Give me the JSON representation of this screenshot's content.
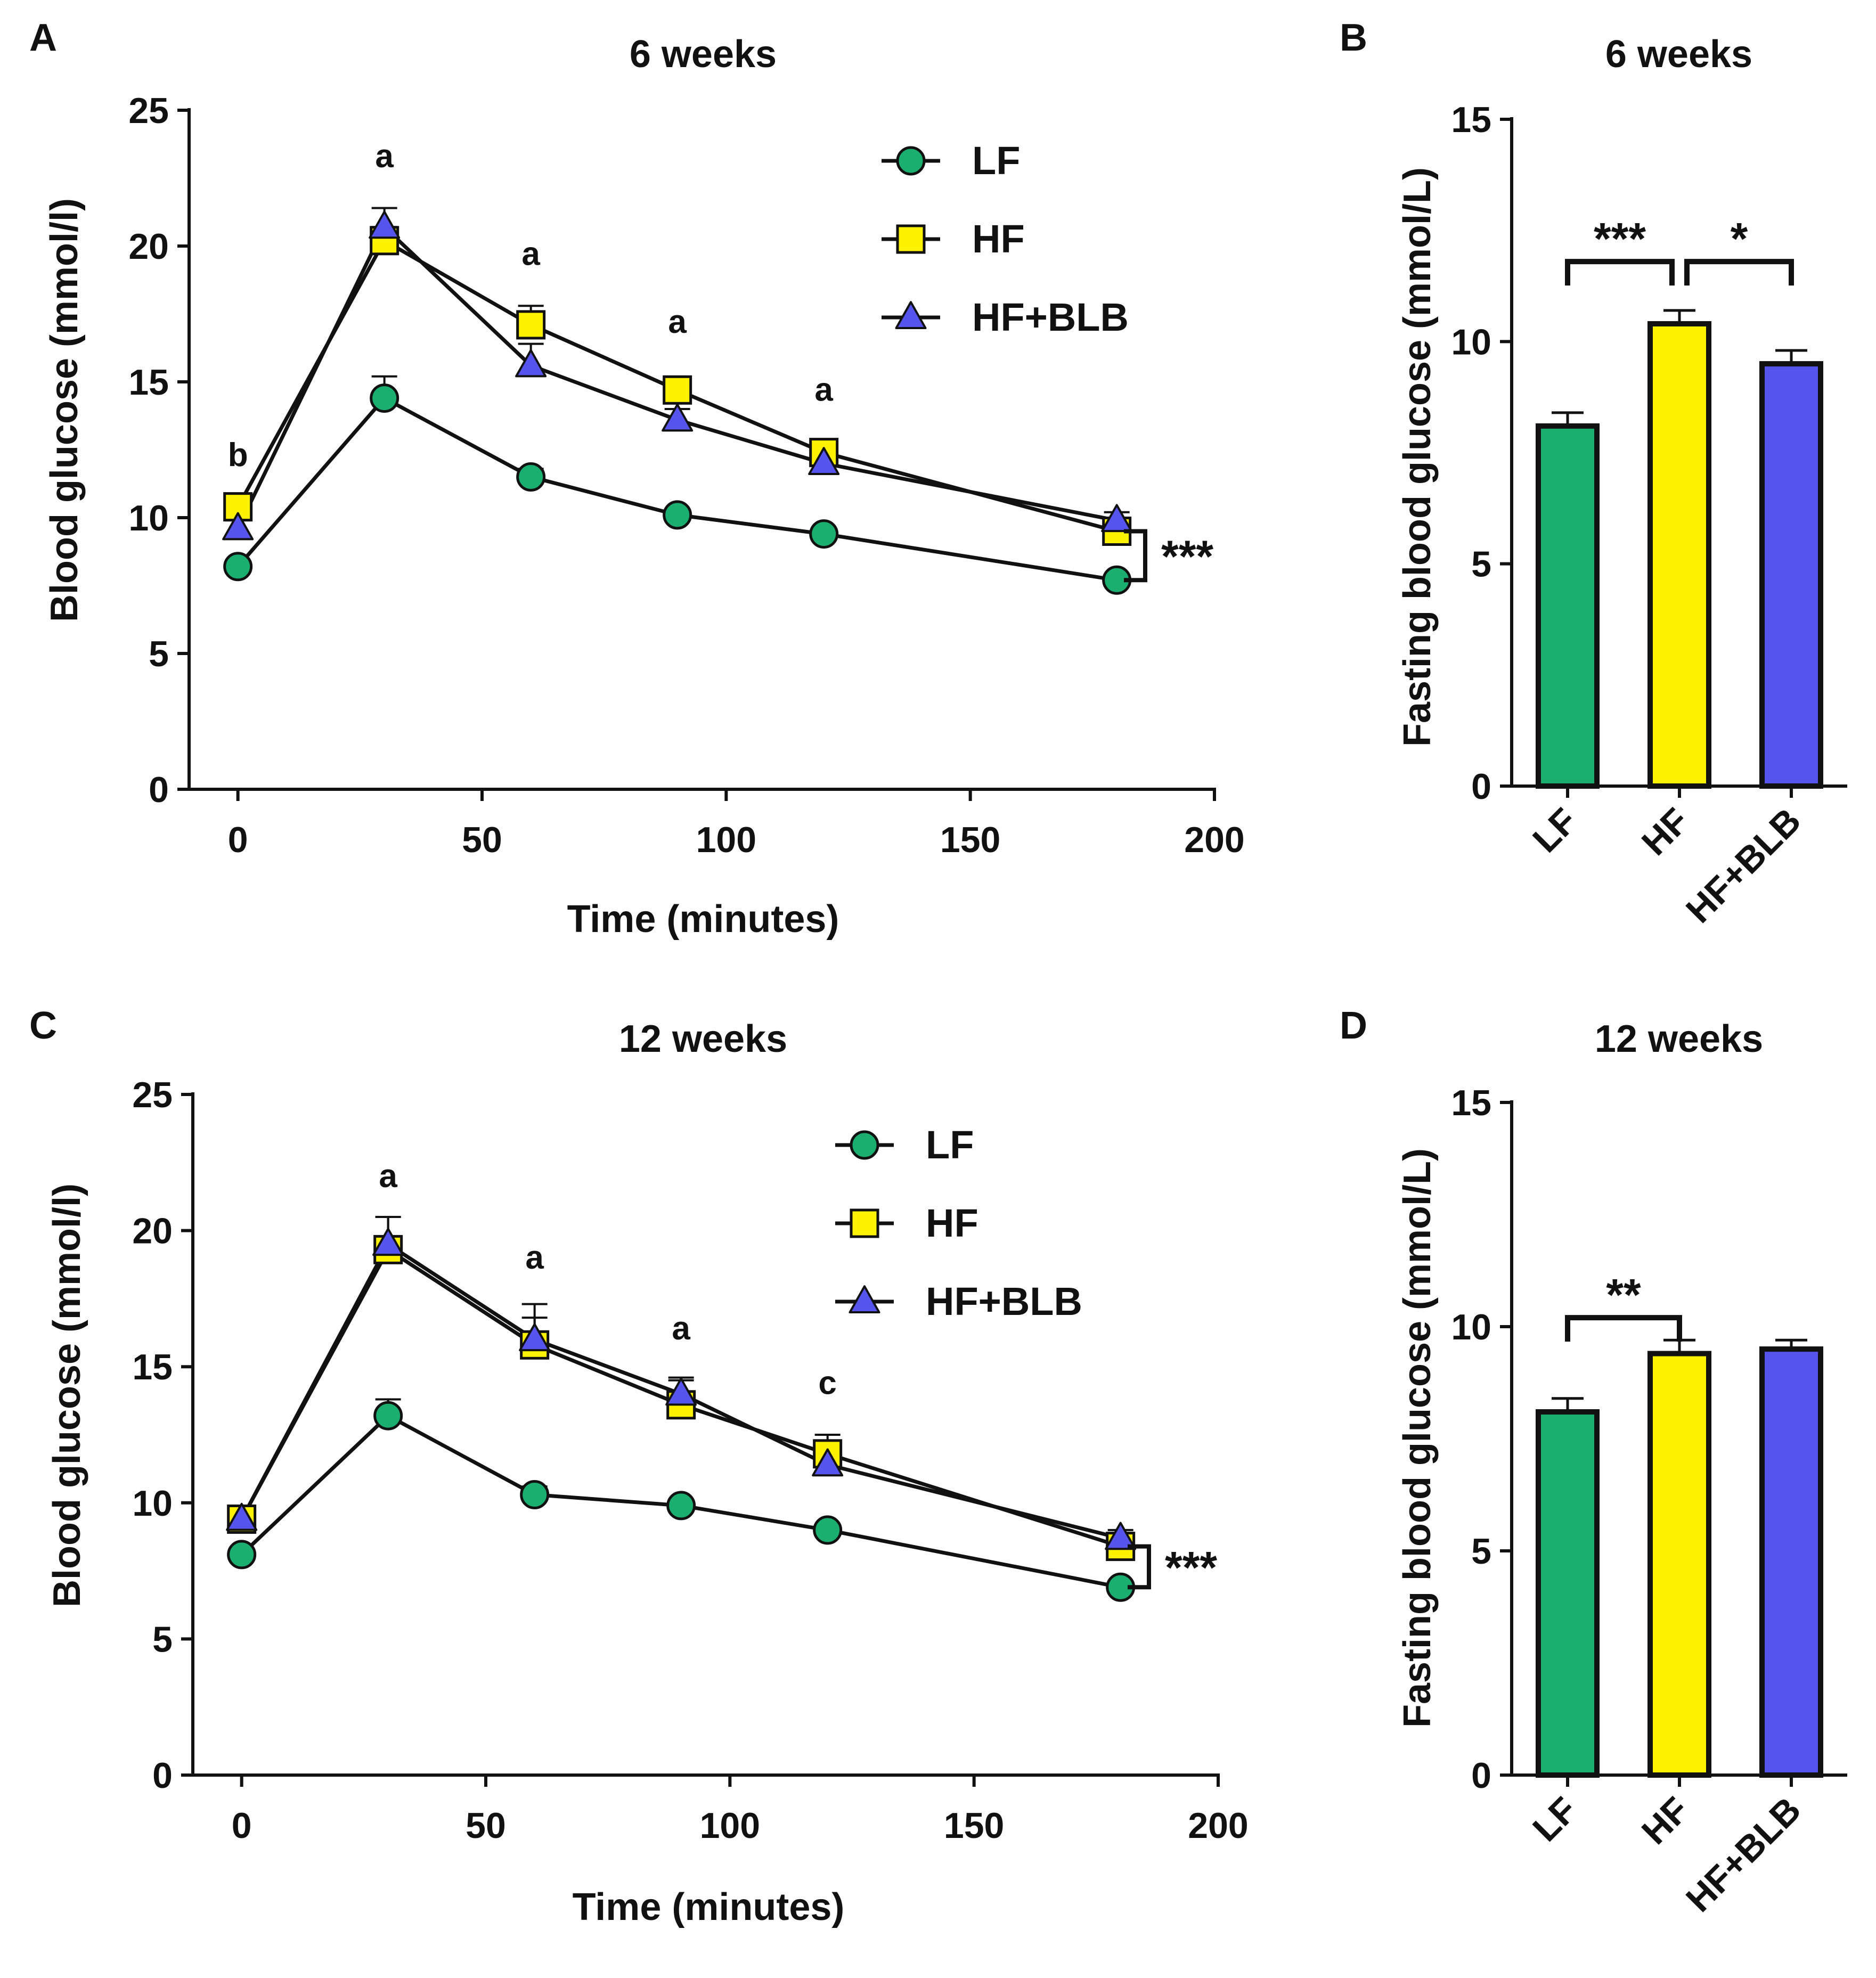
{
  "colors": {
    "LF": "#1aae6f",
    "HF": "#fff200",
    "HF+BLB": "#5555ee",
    "ink": "#111111"
  },
  "chart_data": [
    {
      "id": "A",
      "type": "line",
      "panel_label": "A",
      "title": "6 weeks",
      "xlabel": "Time (minutes)",
      "ylabel": "Blood glucose (mmol/l)",
      "xlim": [
        -10,
        200
      ],
      "ylim": [
        0,
        25
      ],
      "xticks": [
        0,
        50,
        100,
        150,
        200
      ],
      "yticks": [
        0,
        5,
        10,
        15,
        20,
        25
      ],
      "x": [
        0,
        30,
        60,
        90,
        120,
        180
      ],
      "legend": [
        "LF",
        "HF",
        "HF+BLB"
      ],
      "series": [
        {
          "name": "LF",
          "marker": "circle",
          "values": [
            8.2,
            14.4,
            11.5,
            10.1,
            9.4,
            7.7
          ],
          "err": [
            0.2,
            0.8,
            0.3,
            0.2,
            0.2,
            0.2
          ]
        },
        {
          "name": "HF",
          "marker": "square",
          "values": [
            10.4,
            20.2,
            17.1,
            14.7,
            12.4,
            9.5
          ],
          "err": [
            0.3,
            0.5,
            0.7,
            0.4,
            0.3,
            0.3
          ]
        },
        {
          "name": "HF+BLB",
          "marker": "triangle",
          "values": [
            9.6,
            20.7,
            15.6,
            13.6,
            12.0,
            9.9
          ],
          "err": [
            0.3,
            0.7,
            0.8,
            0.4,
            0.3,
            0.3
          ]
        }
      ],
      "annotations": [
        {
          "x": 0,
          "y": 11.9,
          "text": "b"
        },
        {
          "x": 30,
          "y": 22.9,
          "text": "a"
        },
        {
          "x": 60,
          "y": 19.3,
          "text": "a"
        },
        {
          "x": 90,
          "y": 16.8,
          "text": "a"
        },
        {
          "x": 120,
          "y": 14.3,
          "text": "a"
        }
      ],
      "significance": {
        "text": "***",
        "y_top": 9.5,
        "y_bottom": 7.7
      }
    },
    {
      "id": "B",
      "type": "bar",
      "panel_label": "B",
      "title": "6 weeks",
      "xlabel": "",
      "ylabel": "Fasting blood glucose (mmol/L)",
      "ylim": [
        0,
        15
      ],
      "yticks": [
        0,
        5,
        10,
        15
      ],
      "categories": [
        "LF",
        "HF",
        "HF+BLB"
      ],
      "values": [
        8.1,
        10.4,
        9.5
      ],
      "err": [
        0.3,
        0.3,
        0.3
      ],
      "brackets": [
        {
          "from": 0,
          "to": 1,
          "y": 11.8,
          "text": "***"
        },
        {
          "from": 1,
          "to": 2,
          "y": 11.8,
          "text": "*"
        }
      ]
    },
    {
      "id": "C",
      "type": "line",
      "panel_label": "C",
      "title": "12 weeks",
      "xlabel": "Time (minutes)",
      "ylabel": "Blood glucose (mmol/l)",
      "xlim": [
        -10,
        200
      ],
      "ylim": [
        0,
        25
      ],
      "xticks": [
        0,
        50,
        100,
        150,
        200
      ],
      "yticks": [
        0,
        5,
        10,
        15,
        20,
        25
      ],
      "x": [
        0,
        30,
        60,
        90,
        120,
        180
      ],
      "legend": [
        "LF",
        "HF",
        "HF+BLB"
      ],
      "series": [
        {
          "name": "LF",
          "marker": "circle",
          "values": [
            8.1,
            13.2,
            10.3,
            9.9,
            9.0,
            6.9
          ],
          "err": [
            0.2,
            0.6,
            0.3,
            0.2,
            0.2,
            0.2
          ]
        },
        {
          "name": "HF",
          "marker": "square",
          "values": [
            9.4,
            19.3,
            15.8,
            13.6,
            11.8,
            8.4
          ],
          "err": [
            0.3,
            1.2,
            1.5,
            1.0,
            0.7,
            0.3
          ]
        },
        {
          "name": "HF+BLB",
          "marker": "triangle",
          "values": [
            9.4,
            19.5,
            16.0,
            14.0,
            11.4,
            8.7
          ],
          "err": [
            0.3,
            1.0,
            0.8,
            0.5,
            0.4,
            0.3
          ]
        }
      ],
      "annotations": [
        {
          "x": 30,
          "y": 21.6,
          "text": "a"
        },
        {
          "x": 60,
          "y": 18.6,
          "text": "a"
        },
        {
          "x": 90,
          "y": 16.0,
          "text": "a"
        },
        {
          "x": 120,
          "y": 14.0,
          "text": "c"
        }
      ],
      "significance": {
        "text": "***",
        "y_top": 8.4,
        "y_bottom": 6.9
      }
    },
    {
      "id": "D",
      "type": "bar",
      "panel_label": "D",
      "title": "12 weeks",
      "xlabel": "",
      "ylabel": "Fasting blood glucose (mmol/L)",
      "ylim": [
        0,
        15
      ],
      "yticks": [
        0,
        5,
        10,
        15
      ],
      "categories": [
        "LF",
        "HF",
        "HF+BLB"
      ],
      "values": [
        8.1,
        9.4,
        9.5
      ],
      "err": [
        0.3,
        0.3,
        0.2
      ],
      "brackets": [
        {
          "from": 0,
          "to": 1,
          "y": 10.2,
          "text": "**"
        }
      ]
    }
  ]
}
